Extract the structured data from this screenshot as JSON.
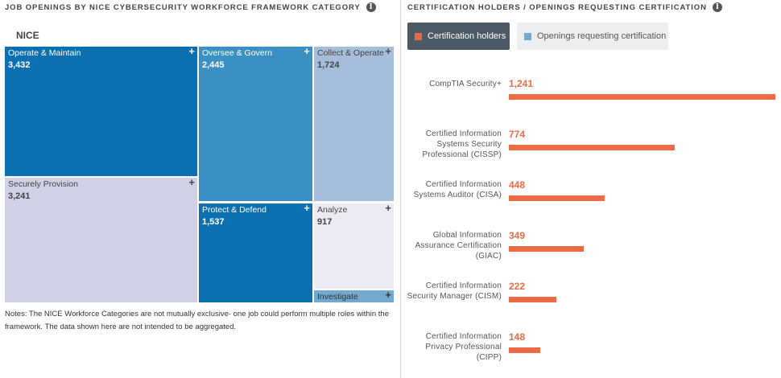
{
  "treemap": {
    "title": "JOB OPENINGS BY NICE CYBERSECURITY WORKFORCE FRAMEWORK CATEGORY",
    "root_label": "NICE",
    "tiles": [
      {
        "name": "Operate & Maintain",
        "value": "3,432",
        "color": "#0b6fb0",
        "text": "#ffffff"
      },
      {
        "name": "Securely Provision",
        "value": "3,241",
        "color": "#d0d1e6",
        "text": "#444444"
      },
      {
        "name": "Oversee & Govern",
        "value": "2,445",
        "color": "#3a90c2",
        "text": "#ffffff"
      },
      {
        "name": "Collect & Operate",
        "value": "1,724",
        "color": "#a6bddb",
        "text": "#444444"
      },
      {
        "name": "Protect & Defend",
        "value": "1,537",
        "color": "#0b6fb0",
        "text": "#ffffff"
      },
      {
        "name": "Analyze",
        "value": "917",
        "color": "#ecebf3",
        "text": "#444444"
      },
      {
        "name": "Investigate",
        "value": "",
        "color": "#74a9cf",
        "text": "#333333"
      }
    ],
    "plus_symbol": "+",
    "notes": "Notes: The NICE Workforce Categories are not mutually exclusive- one job could perform multiple roles within the framework. The data shown here are not intended to be aggregated."
  },
  "cert_panel": {
    "title": "CERTIFICATION HOLDERS / OPENINGS REQUESTING CERTIFICATION",
    "legend": [
      {
        "label": "Certification holders",
        "color": "#ec6b45"
      },
      {
        "label": "Openings requesting certification",
        "color": "#74a9cf"
      }
    ]
  },
  "info_icon_glyph": "i",
  "chart_data": [
    {
      "type": "treemap",
      "title": "JOB OPENINGS BY NICE CYBERSECURITY WORKFORCE FRAMEWORK CATEGORY",
      "categories": [
        "Operate & Maintain",
        "Securely Provision",
        "Oversee & Govern",
        "Collect & Operate",
        "Protect & Defend",
        "Analyze",
        "Investigate"
      ],
      "values": [
        3432,
        3241,
        2445,
        1724,
        1537,
        917,
        null
      ]
    },
    {
      "type": "bar",
      "orientation": "horizontal",
      "title": "CERTIFICATION HOLDERS / OPENINGS REQUESTING CERTIFICATION",
      "categories": [
        "CompTIA Security+",
        "Certified Information Systems Security Professional (CISSP)",
        "Certified Information Systems Auditor (CISA)",
        "Global Information Assurance Certification (GIAC)",
        "Certified Information Security Manager (CISM)",
        "Certified Information Privacy Professional (CIPP)"
      ],
      "series": [
        {
          "name": "Certification holders",
          "values": [
            1241,
            774,
            448,
            349,
            222,
            148
          ],
          "labels": [
            "1,241",
            "774",
            "448",
            "349",
            "222",
            "148"
          ],
          "color": "#ec6b45"
        }
      ],
      "xlim": [
        0,
        1241
      ]
    }
  ]
}
